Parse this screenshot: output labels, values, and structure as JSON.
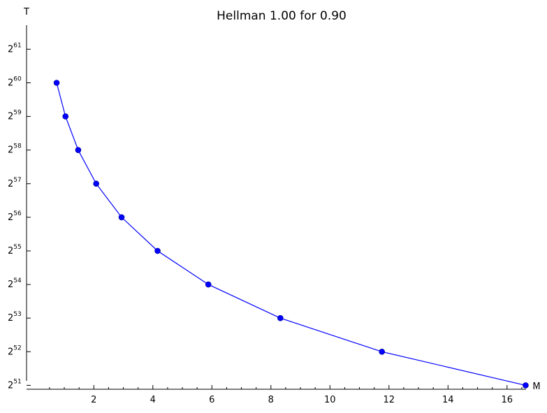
{
  "chart_data": {
    "type": "line",
    "title": "Hellman 1.00 for 0.90",
    "xlabel": "M",
    "ylabel": "T",
    "xlim": [
      0.4,
      17.0
    ],
    "ylim": [
      50.5,
      61.0
    ],
    "y_scale": "log2",
    "grid": false,
    "x_ticks": [
      2,
      4,
      6,
      8,
      10,
      12,
      14,
      16
    ],
    "x_minor_step": 0.5,
    "y_ticks": [
      {
        "value": 51,
        "base": "2",
        "exp": "51"
      },
      {
        "value": 52,
        "base": "2",
        "exp": "52"
      },
      {
        "value": 53,
        "base": "2",
        "exp": "53"
      },
      {
        "value": 54,
        "base": "2",
        "exp": "54"
      },
      {
        "value": 55,
        "base": "2",
        "exp": "55"
      },
      {
        "value": 56,
        "base": "2",
        "exp": "56"
      },
      {
        "value": 57,
        "base": "2",
        "exp": "57"
      },
      {
        "value": 58,
        "base": "2",
        "exp": "58"
      },
      {
        "value": 59,
        "base": "2",
        "exp": "59"
      },
      {
        "value": 60,
        "base": "2",
        "exp": "60"
      },
      {
        "value": 61,
        "base": "2",
        "exp": "61"
      }
    ],
    "series": [
      {
        "color": "#0000ff",
        "x": [
          0.74,
          1.04,
          1.47,
          2.08,
          2.94,
          4.16,
          5.88,
          8.32,
          11.76,
          16.63
        ],
        "y": [
          60.0,
          59.0,
          58.0,
          57.0,
          56.0,
          55.0,
          54.0,
          53.0,
          52.0,
          51.0
        ]
      }
    ]
  }
}
